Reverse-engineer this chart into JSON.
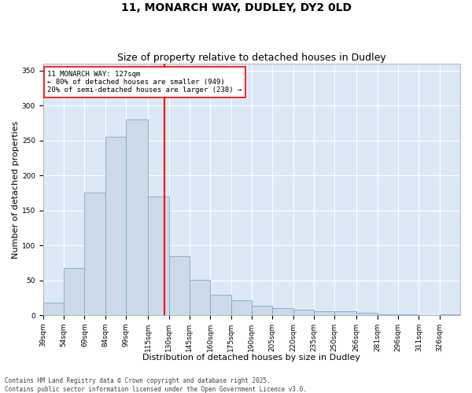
{
  "title": "11, MONARCH WAY, DUDLEY, DY2 0LD",
  "subtitle": "Size of property relative to detached houses in Dudley",
  "xlabel": "Distribution of detached houses by size in Dudley",
  "ylabel": "Number of detached properties",
  "bar_color": "#ccd9e8",
  "bar_edge_color": "#7aaac8",
  "background_color": "#dce8f5",
  "vline_x": 127,
  "vline_color": "red",
  "annotation_text": "11 MONARCH WAY: 127sqm\n← 80% of detached houses are smaller (949)\n20% of semi-detached houses are larger (238) →",
  "annotation_box_color": "white",
  "annotation_box_edge": "red",
  "bins": [
    39,
    54,
    69,
    84,
    99,
    115,
    130,
    145,
    160,
    175,
    190,
    205,
    220,
    235,
    250,
    266,
    281,
    296,
    311,
    326,
    341
  ],
  "counts": [
    18,
    68,
    175,
    255,
    280,
    170,
    84,
    51,
    29,
    21,
    14,
    10,
    8,
    6,
    6,
    4,
    1,
    1,
    0,
    1
  ],
  "ylim": [
    0,
    360
  ],
  "yticks": [
    0,
    50,
    100,
    150,
    200,
    250,
    300,
    350
  ],
  "footnote": "Contains HM Land Registry data © Crown copyright and database right 2025.\nContains public sector information licensed under the Open Government Licence v3.0.",
  "title_fontsize": 10,
  "subtitle_fontsize": 9,
  "axis_fontsize": 8,
  "tick_fontsize": 6.5,
  "footnote_fontsize": 5.5
}
